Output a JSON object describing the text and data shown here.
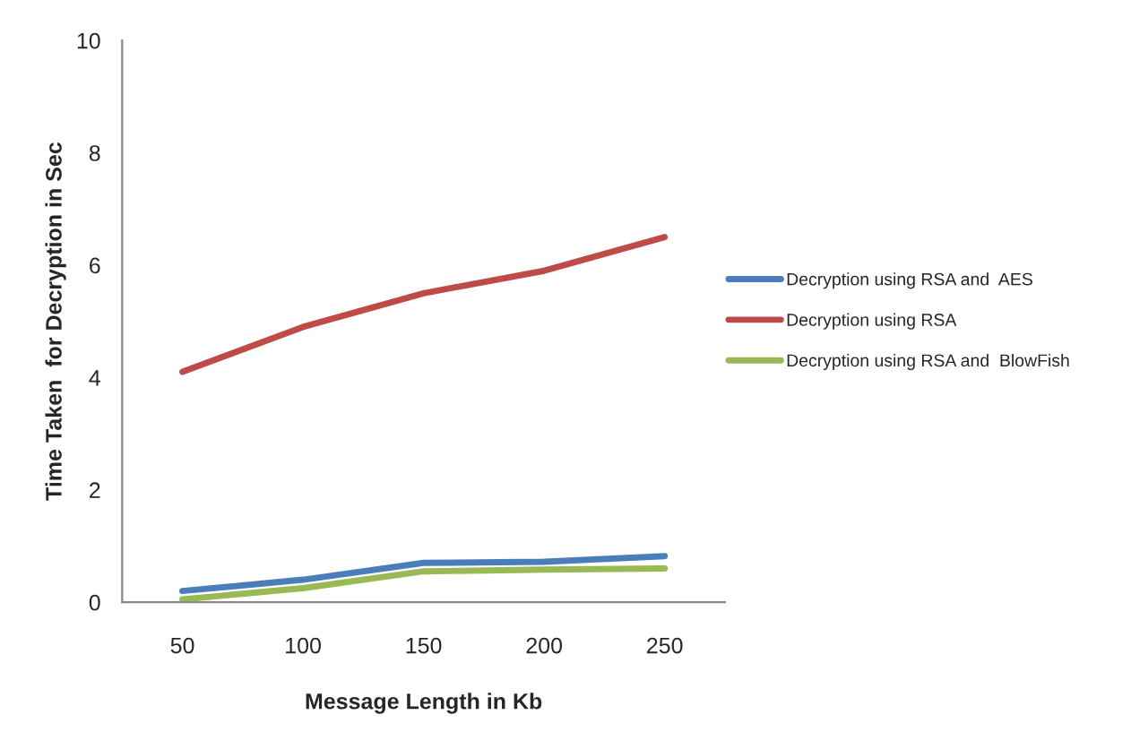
{
  "chart_data": {
    "type": "line",
    "xlabel": "Message Length in Kb",
    "ylabel": "Time Taken  for Decryption in Sec",
    "categories": [
      "50",
      "100",
      "150",
      "200",
      "250"
    ],
    "series": [
      {
        "name": "Decryption using RSA and  AES",
        "color": "#4a7ebb",
        "values": [
          0.2,
          0.4,
          0.7,
          0.72,
          0.82
        ]
      },
      {
        "name": "Decryption using RSA",
        "color": "#be4b48",
        "values": [
          4.1,
          4.9,
          5.5,
          5.9,
          6.5
        ]
      },
      {
        "name": "Decryption using RSA and  BlowFish",
        "color": "#98b954",
        "values": [
          0.05,
          0.25,
          0.55,
          0.58,
          0.6
        ]
      }
    ],
    "ylim": [
      0,
      10
    ],
    "yticks": [
      0,
      2,
      4,
      6,
      8,
      10
    ],
    "grid": false,
    "legend": "right",
    "marker": "none",
    "line_style": "solid"
  }
}
